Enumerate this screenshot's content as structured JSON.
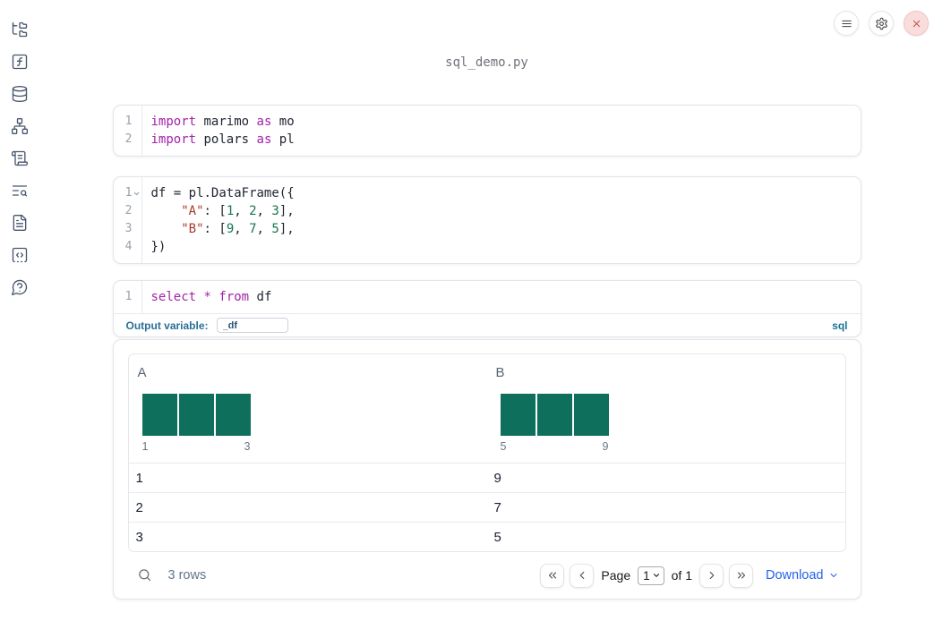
{
  "app": {
    "title": "sql_demo.py"
  },
  "topbar": {
    "buttons": [
      {
        "name": "notebook-menu",
        "icon": "hamburger-icon"
      },
      {
        "name": "settings",
        "icon": "gear-icon"
      },
      {
        "name": "shutdown",
        "icon": "close-icon"
      }
    ]
  },
  "sidebar": {
    "icons": [
      "file-explorer",
      "variables",
      "data-sources",
      "dependency-graph",
      "logs",
      "documentation",
      "snippets",
      "scratchpad",
      "help"
    ]
  },
  "cells": [
    {
      "id": "imports",
      "lines": [
        {
          "n": "1",
          "fold": false,
          "tokens": [
            {
              "t": "import",
              "c": "kw"
            },
            {
              "t": " marimo ",
              "c": "pl"
            },
            {
              "t": "as",
              "c": "kw"
            },
            {
              "t": " mo",
              "c": "pl"
            }
          ]
        },
        {
          "n": "2",
          "fold": false,
          "tokens": [
            {
              "t": "import",
              "c": "kw"
            },
            {
              "t": " polars ",
              "c": "pl"
            },
            {
              "t": "as",
              "c": "kw"
            },
            {
              "t": " pl",
              "c": "pl"
            }
          ]
        }
      ]
    },
    {
      "id": "dataframe",
      "lines": [
        {
          "n": "1",
          "fold": true,
          "tokens": [
            {
              "t": "df = pl.DataFrame({",
              "c": "pl"
            }
          ]
        },
        {
          "n": "2",
          "fold": false,
          "tokens": [
            {
              "t": "    ",
              "c": "pl"
            },
            {
              "t": "\"A\"",
              "c": "str"
            },
            {
              "t": ": [",
              "c": "pl"
            },
            {
              "t": "1",
              "c": "num"
            },
            {
              "t": ", ",
              "c": "pl"
            },
            {
              "t": "2",
              "c": "num"
            },
            {
              "t": ", ",
              "c": "pl"
            },
            {
              "t": "3",
              "c": "num"
            },
            {
              "t": "],",
              "c": "pl"
            }
          ]
        },
        {
          "n": "3",
          "fold": false,
          "tokens": [
            {
              "t": "    ",
              "c": "pl"
            },
            {
              "t": "\"B\"",
              "c": "str"
            },
            {
              "t": ": [",
              "c": "pl"
            },
            {
              "t": "9",
              "c": "num"
            },
            {
              "t": ", ",
              "c": "pl"
            },
            {
              "t": "7",
              "c": "num"
            },
            {
              "t": ", ",
              "c": "pl"
            },
            {
              "t": "5",
              "c": "num"
            },
            {
              "t": "],",
              "c": "pl"
            }
          ]
        },
        {
          "n": "4",
          "fold": false,
          "tokens": [
            {
              "t": "})",
              "c": "pl"
            }
          ]
        }
      ]
    },
    {
      "id": "sql",
      "lines": [
        {
          "n": "1",
          "fold": false,
          "tokens": [
            {
              "t": "select",
              "c": "kw"
            },
            {
              "t": " ",
              "c": "pl"
            },
            {
              "t": "*",
              "c": "kw"
            },
            {
              "t": " ",
              "c": "pl"
            },
            {
              "t": "from",
              "c": "kw"
            },
            {
              "t": " df",
              "c": "pl"
            }
          ]
        }
      ]
    }
  ],
  "sql_footer": {
    "label": "Output variable:",
    "value": "_df",
    "dialect": "sql"
  },
  "table": {
    "columns": [
      {
        "name": "A",
        "histogram": {
          "bins": [
            1,
            1,
            1
          ],
          "min_label": "1",
          "max_label": "3"
        }
      },
      {
        "name": "B",
        "histogram": {
          "bins": [
            1,
            1,
            1
          ],
          "min_label": "5",
          "max_label": "9"
        }
      }
    ],
    "rows": [
      [
        "1",
        "9"
      ],
      [
        "2",
        "7"
      ],
      [
        "3",
        "5"
      ]
    ],
    "summary": "3 rows",
    "pagination": {
      "page_label": "Page",
      "page_value": "1",
      "total_label": "of 1"
    },
    "download_label": "Download"
  },
  "colors": {
    "bar": "#0e6f5d",
    "accent_blue": "#2563eb",
    "sql_accent": "#1a7299"
  }
}
